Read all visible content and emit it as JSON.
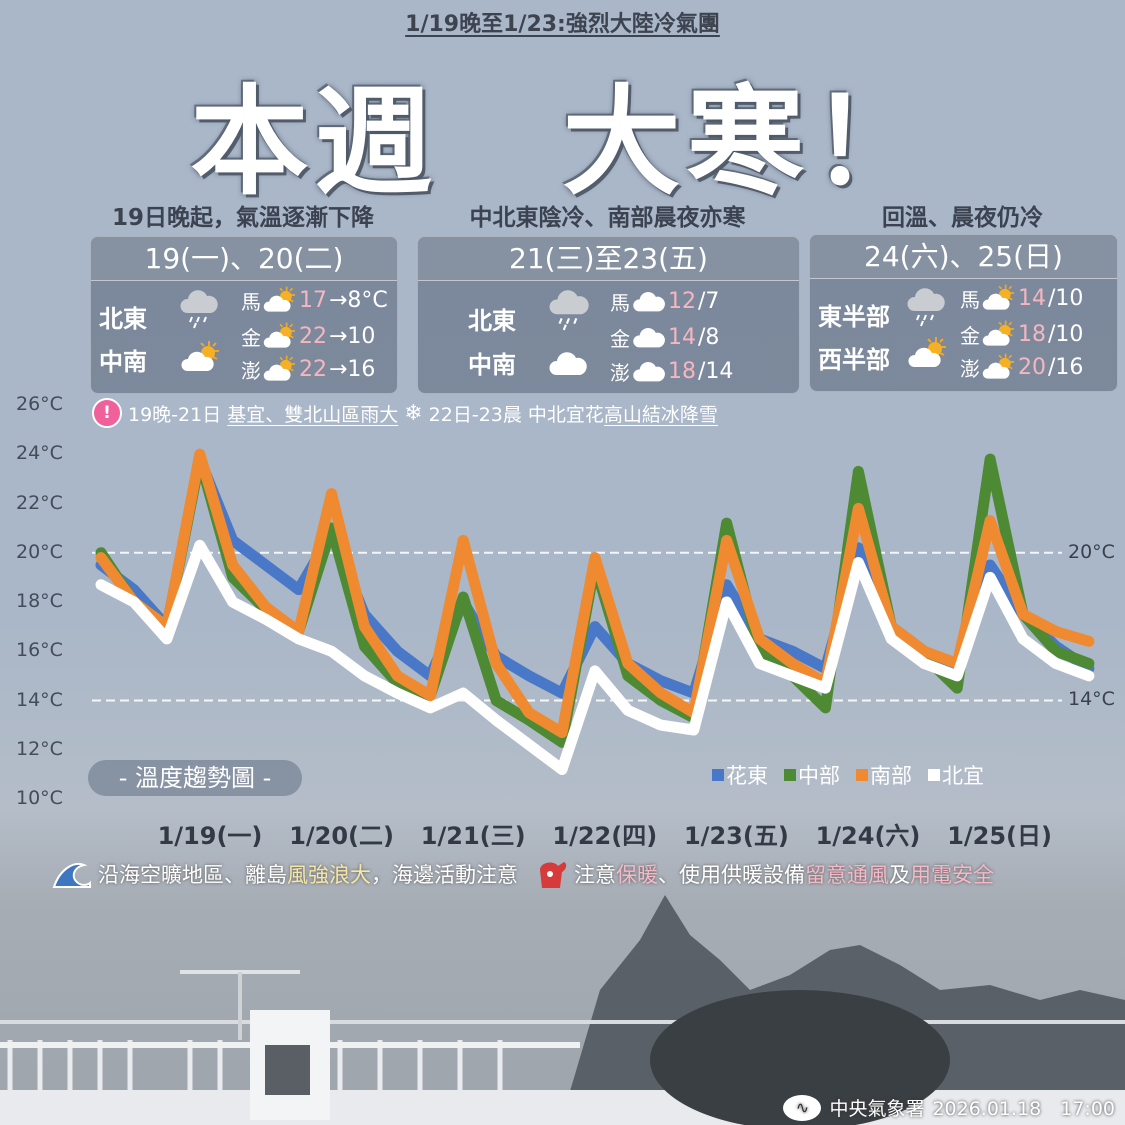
{
  "title": "1/19晚至1/23:強烈大陸冷氣團",
  "headline": "本週　大寒！",
  "panels": [
    {
      "subtitle": "19日晚起，氣溫逐漸下降",
      "header": "19(一)、20(二)",
      "regions": [
        {
          "name": "北東",
          "icon": "rain-cloud"
        },
        {
          "name": "中南",
          "icon": "sun-cloud"
        }
      ],
      "islands": [
        {
          "name": "馬",
          "icon": "sun-cloud",
          "high": "17",
          "rest": "→8°C"
        },
        {
          "name": "金",
          "icon": "sun-cloud",
          "high": "22",
          "rest": "→10"
        },
        {
          "name": "澎",
          "icon": "sun-cloud",
          "high": "22",
          "rest": "→16"
        }
      ]
    },
    {
      "subtitle": "中北東陰冷、南部晨夜亦寒",
      "header": "21(三)至23(五)",
      "regions": [
        {
          "name": "北東",
          "icon": "rain-cloud"
        },
        {
          "name": "中南",
          "icon": "cloud"
        }
      ],
      "islands": [
        {
          "name": "馬",
          "icon": "cloud",
          "high": "12",
          "rest": "/7"
        },
        {
          "name": "金",
          "icon": "cloud",
          "high": "14",
          "rest": "/8"
        },
        {
          "name": "澎",
          "icon": "cloud",
          "high": "18",
          "rest": "/14"
        }
      ]
    },
    {
      "subtitle": "回溫、晨夜仍冷",
      "header": "24(六)、25(日)",
      "regions": [
        {
          "name": "東半部",
          "icon": "rain-cloud"
        },
        {
          "name": "西半部",
          "icon": "sun-cloud"
        }
      ],
      "islands": [
        {
          "name": "馬",
          "icon": "sun-cloud",
          "high": "14",
          "rest": "/10"
        },
        {
          "name": "金",
          "icon": "sun-cloud",
          "high": "18",
          "rest": "/10"
        },
        {
          "name": "澎",
          "icon": "sun-cloud",
          "high": "20",
          "rest": "/16"
        }
      ]
    }
  ],
  "alert": {
    "icon": "exclamation-icon",
    "mark": "!",
    "part1": "19晚-21日",
    "part1_u": "基宜、雙北山區雨大",
    "snow_icon": "❄",
    "part2": "22日-23晨 中北宜花",
    "part2_u": "高山結冰降雪"
  },
  "chart_data": {
    "type": "line",
    "title": "- 溫度趨勢圖 -",
    "ylim": [
      10,
      26
    ],
    "yticks": [
      "26°C",
      "24°C",
      "22°C",
      "20°C",
      "18°C",
      "16°C",
      "14°C",
      "12°C",
      "10°C"
    ],
    "xticks": [
      "1/19(一)",
      "1/20(二)",
      "1/21(三)",
      "1/22(四)",
      "1/23(五)",
      "1/24(六)",
      "1/25(日)"
    ],
    "reference_lines": [
      {
        "value": 20,
        "label": "20°C"
      },
      {
        "value": 14,
        "label": "14°C"
      }
    ],
    "legend_position": "bottom-right",
    "x": [
      "1/18 20時",
      "1/19 02時",
      "1/19 08時",
      "1/19 14時",
      "1/19 20時",
      "1/20 02時",
      "1/20 08時",
      "1/20 14時",
      "1/20 20時",
      "1/21 02時",
      "1/21 08時",
      "1/21 14時",
      "1/21 20時",
      "1/22 02時",
      "1/22 08時",
      "1/22 14時",
      "1/22 20時",
      "1/23 02時",
      "1/23 08時",
      "1/23 14時",
      "1/23 20時",
      "1/24 02時",
      "1/24 08時",
      "1/24 14時",
      "1/24 20時",
      "1/25 02時",
      "1/25 08時",
      "1/25 14時",
      "1/25 20時",
      "1/26 02時",
      "1/26 08時"
    ],
    "series": [
      {
        "name": "花東",
        "color": "#4a78c8",
        "values": [
          19.5,
          18.5,
          17,
          23.8,
          20.5,
          19.5,
          18.5,
          20.8,
          17.5,
          16,
          15,
          18,
          15.8,
          15,
          14.3,
          17,
          15.5,
          14.8,
          14.3,
          18.7,
          16.5,
          16,
          15.3,
          20.2,
          17,
          16,
          15.2,
          19.5,
          17.5,
          16.2,
          15.3
        ]
      },
      {
        "name": "中部",
        "color": "#4e8a34",
        "values": [
          20,
          18,
          17,
          23.8,
          19,
          17.7,
          16.8,
          21,
          16.2,
          14.7,
          14.2,
          18.2,
          14,
          13.2,
          12.3,
          19.5,
          15,
          14,
          13.3,
          21.2,
          16,
          15,
          13.7,
          23.3,
          17,
          15.8,
          14.5,
          23.8,
          17.5,
          16,
          15.5
        ]
      },
      {
        "name": "南部",
        "color": "#f08a30",
        "values": [
          19.8,
          18,
          17,
          24,
          19.5,
          17.8,
          16.8,
          22.4,
          17,
          15,
          14.2,
          20.5,
          15.5,
          13.5,
          12.7,
          19.8,
          15.5,
          14.3,
          13.5,
          20.5,
          16.5,
          15.5,
          14.7,
          21.8,
          17,
          16,
          15.5,
          21.3,
          17.5,
          16.8,
          16.4
        ]
      },
      {
        "name": "北宜",
        "color": "#ffffff",
        "values": [
          18.7,
          18,
          16.5,
          20.3,
          18,
          17.3,
          16.5,
          16,
          15,
          14.3,
          13.7,
          14.3,
          13.2,
          12.2,
          11.2,
          15.2,
          13.6,
          13,
          12.8,
          18,
          15.5,
          15,
          14.5,
          19.6,
          16.5,
          15.5,
          15,
          19,
          16.5,
          15.5,
          15
        ]
      }
    ]
  },
  "notice": {
    "wave_icon": "wave-icon",
    "a1": "沿海空曠地區、離島",
    "a2": "風強浪大",
    "a3": "，海邊活動注意",
    "mitten_icon": "mitten-icon",
    "b1": "注意",
    "b2": "保暖",
    "b3": "、使用供暖設備",
    "b4": "留意通風",
    "b5": "及",
    "b6": "用電安全"
  },
  "footer": {
    "org": "中央氣象署",
    "datetime": "2026.01.18　17:00"
  }
}
